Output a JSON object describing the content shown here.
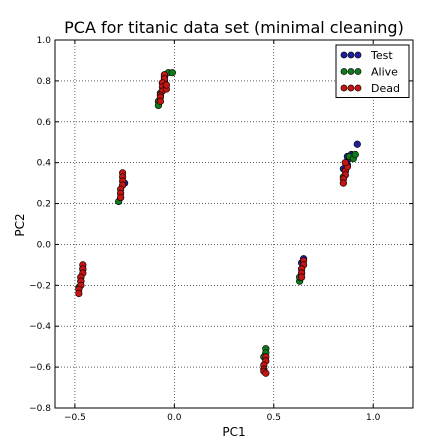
{
  "chart_data": {
    "type": "scatter",
    "title": "PCA for titanic data set (minimal cleaning)",
    "xlabel": "PC1",
    "ylabel": "PC2",
    "xlim": [
      -0.6,
      1.2
    ],
    "ylim": [
      -0.8,
      1.0
    ],
    "x_ticks": [
      -0.5,
      0.0,
      0.5,
      1.0
    ],
    "x_tick_labels": [
      "−0.5",
      "0.0",
      "0.5",
      "1.0"
    ],
    "y_ticks": [
      -0.8,
      -0.6,
      -0.4,
      -0.2,
      0.0,
      0.2,
      0.4,
      0.6,
      0.8,
      1.0
    ],
    "y_tick_labels": [
      "−0.8",
      "−0.6",
      "−0.4",
      "−0.2",
      "0.0",
      "0.2",
      "0.4",
      "0.6",
      "0.8",
      "1.0"
    ],
    "grid": true,
    "legend_position": "top-right",
    "series": [
      {
        "name": "Test",
        "color": "#1f1f9e",
        "points": [
          [
            0.87,
            0.43
          ],
          [
            0.89,
            0.44
          ],
          [
            0.92,
            0.49
          ],
          [
            0.88,
            0.42
          ],
          [
            0.86,
            0.4
          ],
          [
            0.85,
            0.37
          ],
          [
            0.87,
            0.39
          ],
          [
            0.64,
            -0.09
          ],
          [
            0.65,
            -0.07
          ],
          [
            0.64,
            -0.12
          ],
          [
            -0.46,
            -0.12
          ],
          [
            -0.47,
            -0.16
          ],
          [
            -0.06,
            0.79
          ],
          [
            -0.05,
            0.8
          ],
          [
            -0.25,
            0.3
          ]
        ]
      },
      {
        "name": "Alive",
        "color": "#0f7a1a",
        "points": [
          [
            -0.03,
            0.84
          ],
          [
            -0.01,
            0.84
          ],
          [
            -0.05,
            0.82
          ],
          [
            -0.07,
            0.74
          ],
          [
            -0.08,
            0.7
          ],
          [
            -0.08,
            0.68
          ],
          [
            -0.28,
            0.21
          ],
          [
            -0.27,
            0.23
          ],
          [
            0.46,
            -0.51
          ],
          [
            0.46,
            -0.53
          ],
          [
            0.45,
            -0.55
          ],
          [
            0.63,
            -0.18
          ],
          [
            0.63,
            -0.16
          ],
          [
            0.64,
            -0.14
          ],
          [
            0.88,
            0.43
          ],
          [
            0.9,
            0.42
          ],
          [
            0.91,
            0.44
          ],
          [
            0.86,
            0.36
          ],
          [
            0.87,
            0.38
          ],
          [
            0.85,
            0.33
          ],
          [
            -0.48,
            -0.21
          ],
          [
            -0.47,
            -0.18
          ]
        ]
      },
      {
        "name": "Dead",
        "color": "#c41414",
        "points": [
          [
            -0.05,
            0.83
          ],
          [
            -0.05,
            0.81
          ],
          [
            -0.06,
            0.79
          ],
          [
            -0.06,
            0.77
          ],
          [
            -0.06,
            0.75
          ],
          [
            -0.07,
            0.73
          ],
          [
            -0.07,
            0.72
          ],
          [
            -0.07,
            0.7
          ],
          [
            -0.04,
            0.76
          ],
          [
            -0.04,
            0.78
          ],
          [
            -0.26,
            0.35
          ],
          [
            -0.26,
            0.33
          ],
          [
            -0.26,
            0.31
          ],
          [
            -0.26,
            0.29
          ],
          [
            -0.27,
            0.27
          ],
          [
            -0.27,
            0.25
          ],
          [
            -0.27,
            0.23
          ],
          [
            -0.46,
            -0.1
          ],
          [
            -0.46,
            -0.12
          ],
          [
            -0.46,
            -0.14
          ],
          [
            -0.47,
            -0.16
          ],
          [
            -0.47,
            -0.18
          ],
          [
            -0.47,
            -0.2
          ],
          [
            -0.48,
            -0.22
          ],
          [
            -0.48,
            -0.24
          ],
          [
            0.46,
            -0.55
          ],
          [
            0.46,
            -0.57
          ],
          [
            0.45,
            -0.59
          ],
          [
            0.45,
            -0.61
          ],
          [
            0.45,
            -0.62
          ],
          [
            0.46,
            -0.63
          ],
          [
            0.65,
            -0.08
          ],
          [
            0.65,
            -0.1
          ],
          [
            0.64,
            -0.12
          ],
          [
            0.64,
            -0.14
          ],
          [
            0.64,
            -0.16
          ],
          [
            0.86,
            0.36
          ],
          [
            0.86,
            0.34
          ],
          [
            0.85,
            0.32
          ],
          [
            0.85,
            0.3
          ],
          [
            0.87,
            0.38
          ],
          [
            0.86,
            0.4
          ]
        ]
      }
    ]
  }
}
